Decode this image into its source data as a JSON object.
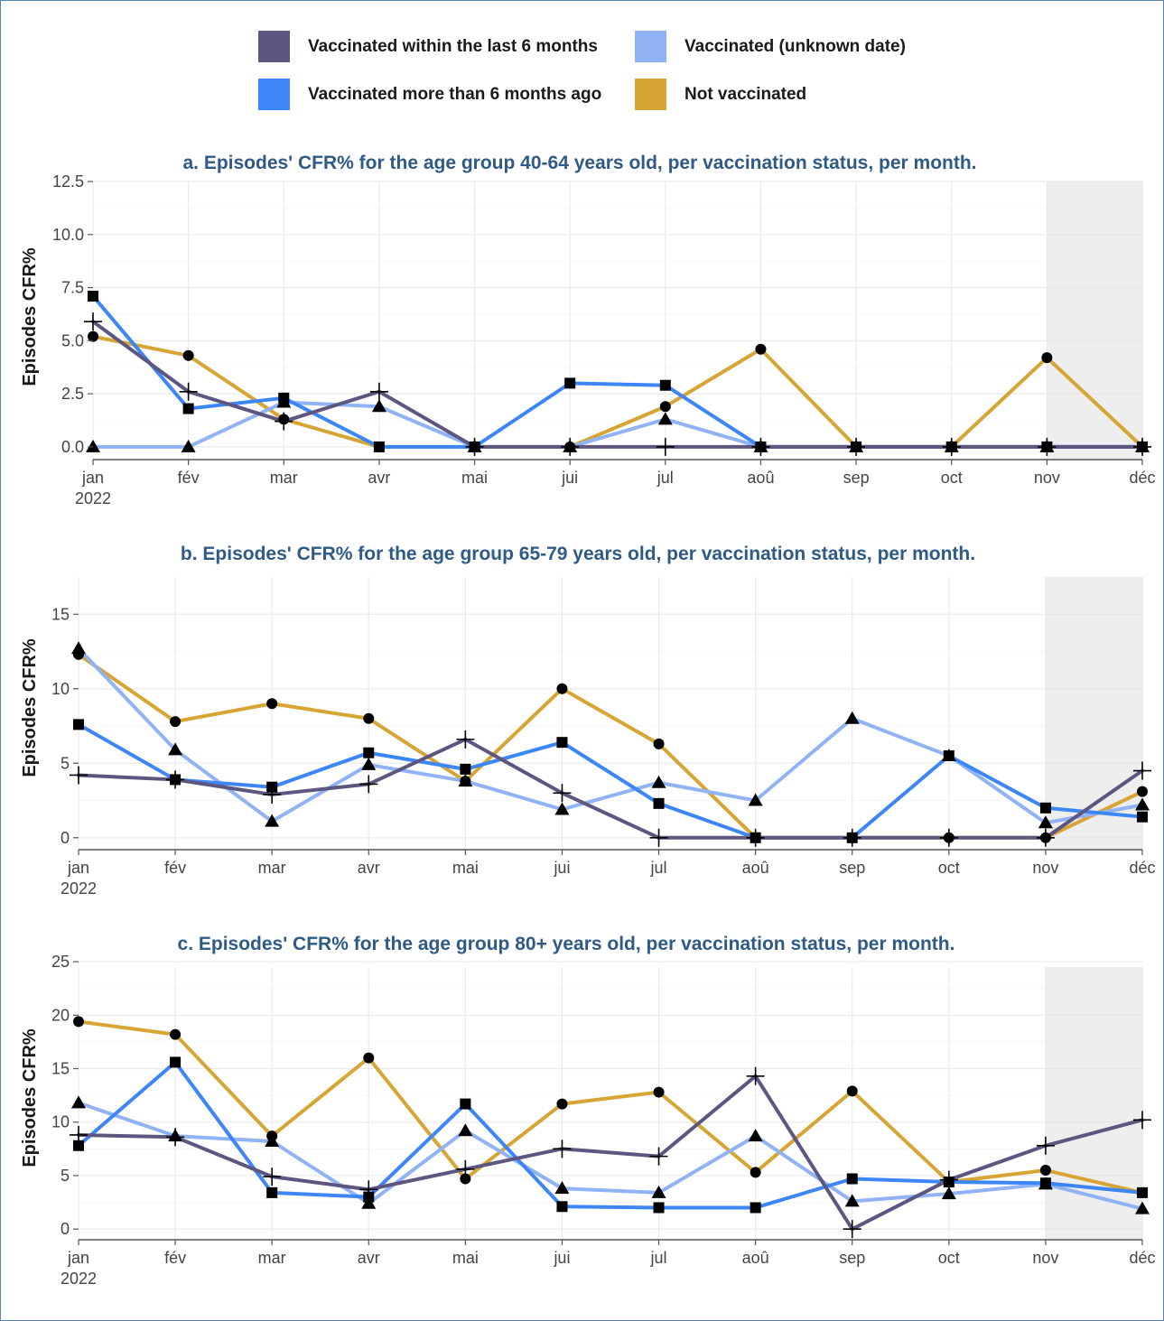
{
  "legend": {
    "items": [
      {
        "label": "Vaccinated within the last 6 months",
        "color": "#5c5680"
      },
      {
        "label": "Vaccinated (unknown date)",
        "color": "#8fb3f5"
      },
      {
        "label": "Vaccinated more than 6 months ago",
        "color": "#3d86f7"
      },
      {
        "label": "Not vaccinated",
        "color": "#d6a534"
      }
    ]
  },
  "chart_data": [
    {
      "type": "line",
      "title": "a. Episodes' CFR% for the age group 40-64 years old, per vaccination status, per month.",
      "ylabel": "Episodes  CFR%",
      "xlabel": "",
      "categories": [
        "jan",
        "fév",
        "mar",
        "avr",
        "mai",
        "jui",
        "jul",
        "aoû",
        "sep",
        "oct",
        "nov",
        "déc"
      ],
      "x_year_label": "2022",
      "ylim": [
        -0.6,
        12.5
      ],
      "yticks": [
        0.0,
        2.5,
        5.0,
        7.5,
        10.0,
        12.5
      ],
      "ytick_labels": [
        "0.0",
        "2.5",
        "5.0",
        "7.5",
        "10.0",
        "12.5"
      ],
      "shaded_region": [
        "nov",
        "déc"
      ],
      "grid": true,
      "series": [
        {
          "name": "Not vaccinated",
          "color": "#d6a534",
          "marker": "circle",
          "values": [
            5.2,
            4.3,
            1.3,
            0,
            0,
            0,
            1.9,
            4.6,
            0,
            0,
            4.2,
            0
          ]
        },
        {
          "name": "Vaccinated (unknown date)",
          "color": "#8fb3f5",
          "marker": "triangle",
          "values": [
            0,
            0,
            2.1,
            1.9,
            0,
            0,
            1.3,
            0,
            0,
            0,
            0,
            0
          ]
        },
        {
          "name": "Vaccinated more than 6 months ago",
          "color": "#3d86f7",
          "marker": "square",
          "values": [
            7.1,
            1.8,
            2.3,
            0,
            0,
            3.0,
            2.9,
            0,
            0,
            0,
            0,
            0
          ]
        },
        {
          "name": "Vaccinated within the last 6 months",
          "color": "#5c5680",
          "marker": "plus",
          "values": [
            5.9,
            2.6,
            1.2,
            2.6,
            0,
            0,
            0,
            0,
            0,
            0,
            0,
            0
          ]
        }
      ]
    },
    {
      "type": "line",
      "title": "b. Episodes' CFR% for the age group 65-79 years old, per vaccination status, per month.",
      "ylabel": "Episodes  CFR%",
      "xlabel": "",
      "categories": [
        "jan",
        "fév",
        "mar",
        "avr",
        "mai",
        "jui",
        "jul",
        "aoû",
        "sep",
        "oct",
        "nov",
        "déc"
      ],
      "x_year_label": "2022",
      "ylim": [
        -0.8,
        17.5
      ],
      "yticks": [
        0,
        5,
        10,
        15
      ],
      "ytick_labels": [
        "0",
        "5",
        "10",
        "15"
      ],
      "shaded_region": [
        "nov",
        "déc"
      ],
      "grid": true,
      "series": [
        {
          "name": "Not vaccinated",
          "color": "#d6a534",
          "marker": "circle",
          "values": [
            12.3,
            7.8,
            9.0,
            8.0,
            3.8,
            10.0,
            6.3,
            0,
            0,
            0,
            0,
            3.1
          ]
        },
        {
          "name": "Vaccinated (unknown date)",
          "color": "#8fb3f5",
          "marker": "triangle",
          "values": [
            12.7,
            5.9,
            1.1,
            4.9,
            3.8,
            1.9,
            3.7,
            2.5,
            8.0,
            5.5,
            1.0,
            2.2
          ]
        },
        {
          "name": "Vaccinated more than 6 months ago",
          "color": "#3d86f7",
          "marker": "square",
          "values": [
            7.6,
            3.9,
            3.4,
            5.7,
            4.6,
            6.4,
            2.3,
            0,
            0,
            5.5,
            2.0,
            1.4
          ]
        },
        {
          "name": "Vaccinated within the last 6 months",
          "color": "#5c5680",
          "marker": "plus",
          "values": [
            4.2,
            3.9,
            2.9,
            3.6,
            6.6,
            3.0,
            0,
            0,
            0,
            0,
            0,
            4.5
          ]
        }
      ]
    },
    {
      "type": "line",
      "title": "c. Episodes' CFR% for the age group 80+ years old, per vaccination status, per month.",
      "ylabel": "Episodes  CFR%",
      "xlabel": "",
      "categories": [
        "jan",
        "fév",
        "mar",
        "avr",
        "mai",
        "jui",
        "jul",
        "aoû",
        "sep",
        "oct",
        "nov",
        "déc"
      ],
      "x_year_label": "2022",
      "ylim": [
        -1.0,
        24.5
      ],
      "yticks": [
        0,
        5,
        10,
        15,
        20,
        25
      ],
      "ytick_labels": [
        "0",
        "5",
        "10",
        "15",
        "20",
        "25"
      ],
      "shaded_region": [
        "nov",
        "déc"
      ],
      "grid": true,
      "series": [
        {
          "name": "Not vaccinated",
          "color": "#d6a534",
          "marker": "circle",
          "values": [
            19.4,
            18.2,
            8.7,
            16.0,
            4.7,
            11.7,
            12.8,
            5.3,
            12.9,
            4.4,
            5.5,
            3.4
          ]
        },
        {
          "name": "Vaccinated (unknown date)",
          "color": "#8fb3f5",
          "marker": "triangle",
          "values": [
            11.8,
            8.7,
            8.2,
            2.4,
            9.2,
            3.8,
            3.4,
            8.7,
            2.6,
            3.3,
            4.2,
            1.9
          ]
        },
        {
          "name": "Vaccinated more than 6 months ago",
          "color": "#3d86f7",
          "marker": "square",
          "values": [
            7.8,
            15.6,
            3.4,
            3.0,
            11.7,
            2.1,
            2.0,
            2.0,
            4.7,
            4.4,
            4.3,
            3.4
          ]
        },
        {
          "name": "Vaccinated within the last 6 months",
          "color": "#5c5680",
          "marker": "plus",
          "values": [
            8.8,
            8.6,
            4.9,
            3.7,
            5.6,
            7.5,
            6.8,
            14.3,
            0,
            4.6,
            7.8,
            10.2
          ]
        }
      ]
    }
  ]
}
